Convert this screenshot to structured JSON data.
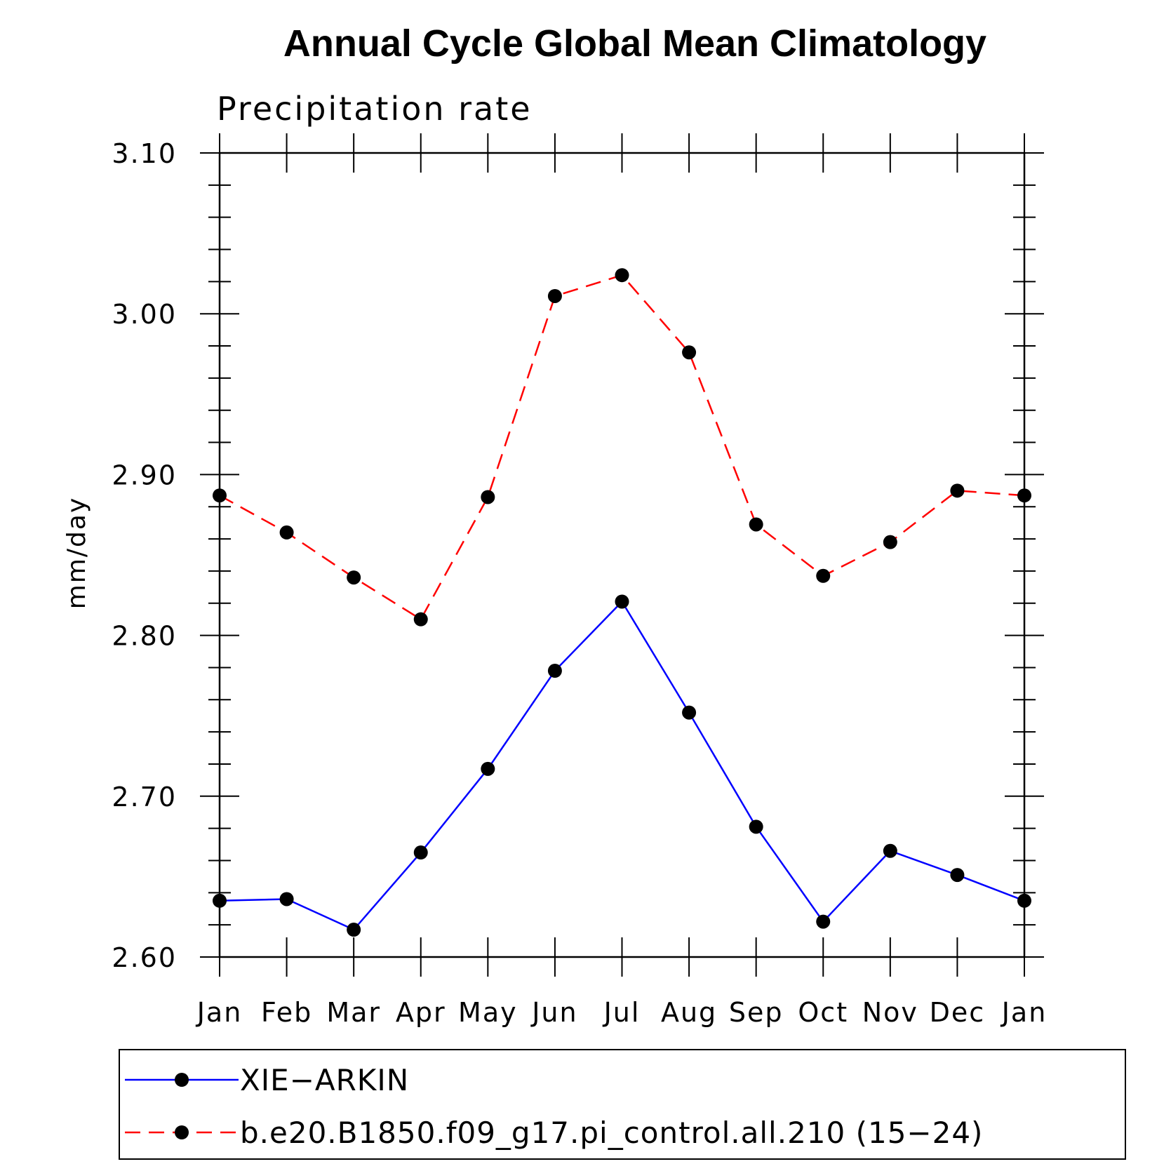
{
  "chart_data": {
    "type": "line",
    "title": "Annual Cycle Global Mean Climatology",
    "subtitle": "Precipitation rate",
    "xlabel": "",
    "ylabel": "mm/day",
    "categories": [
      "Jan",
      "Feb",
      "Mar",
      "Apr",
      "May",
      "Jun",
      "Jul",
      "Aug",
      "Sep",
      "Oct",
      "Nov",
      "Dec",
      "Jan"
    ],
    "ylim": [
      2.6,
      3.1
    ],
    "yticks": [
      "2.60",
      "2.70",
      "2.80",
      "2.90",
      "3.00",
      "3.10"
    ],
    "grid": false,
    "legend_position": "bottom",
    "series": [
      {
        "name": "XIE−ARKIN",
        "color": "#0000ff",
        "line_style": "solid",
        "values": [
          2.635,
          2.636,
          2.617,
          2.665,
          2.717,
          2.778,
          2.821,
          2.752,
          2.681,
          2.622,
          2.666,
          2.651,
          2.635
        ]
      },
      {
        "name": "b.e20.B1850.f09_g17.pi_control.all.210 (15−24)",
        "color": "#ff0000",
        "line_style": "dashed",
        "values": [
          2.887,
          2.864,
          2.836,
          2.81,
          2.886,
          3.011,
          3.024,
          2.976,
          2.869,
          2.837,
          2.858,
          2.89,
          2.887
        ]
      }
    ]
  }
}
